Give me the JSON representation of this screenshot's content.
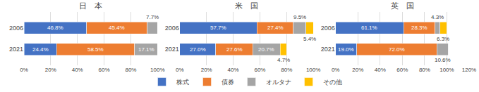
{
  "chart_data": [
    {
      "type": "bar",
      "title": "日　本",
      "orientation": "horizontal",
      "stacked": true,
      "data_labels": true,
      "grid": true,
      "legend": "bottom",
      "categories": [
        "2006",
        "2021"
      ],
      "series": [
        {
          "name": "株式",
          "color": "#4472C4",
          "values": [
            46.8,
            24.4
          ],
          "value_labels": [
            "46.8%",
            "24.4%"
          ]
        },
        {
          "name": "債券",
          "color": "#ED7D31",
          "values": [
            45.4,
            58.5
          ],
          "value_labels": [
            "45.4%",
            "58.5%"
          ]
        },
        {
          "name": "オルタナ",
          "color": "#A5A5A5",
          "values": [
            7.7,
            17.1
          ],
          "value_labels": [
            "7.7%",
            "17.1%"
          ]
        }
      ],
      "xlim": [
        0,
        100
      ],
      "xticks": [
        {
          "value": 0,
          "label": "0%"
        },
        {
          "value": 20,
          "label": "20%"
        },
        {
          "value": 40,
          "label": "40%"
        },
        {
          "value": 60,
          "label": "60%"
        },
        {
          "value": 80,
          "label": "80%"
        },
        {
          "value": 100,
          "label": "100%"
        }
      ]
    },
    {
      "type": "bar",
      "title": "米　国",
      "orientation": "horizontal",
      "stacked": true,
      "data_labels": true,
      "grid": true,
      "legend": "bottom",
      "categories": [
        "2006",
        "2021"
      ],
      "series": [
        {
          "name": "株式",
          "color": "#4472C4",
          "values": [
            57.7,
            27.0
          ],
          "value_labels": [
            "57.7%",
            "27.0%"
          ]
        },
        {
          "name": "債券",
          "color": "#ED7D31",
          "values": [
            27.4,
            27.6
          ],
          "value_labels": [
            "27.4%",
            "27.6%"
          ]
        },
        {
          "name": "オルタナ",
          "color": "#A5A5A5",
          "values": [
            9.5,
            20.7
          ],
          "value_labels": [
            "9.5%",
            "20.7%"
          ]
        },
        {
          "name": "その他",
          "color": "#FFC000",
          "values": [
            5.4,
            4.7
          ],
          "value_labels": [
            "5.4%",
            "4.7%"
          ]
        }
      ],
      "xlim": [
        0,
        100
      ],
      "xticks": [
        {
          "value": 0,
          "label": "0%"
        },
        {
          "value": 20,
          "label": "20%"
        },
        {
          "value": 40,
          "label": "40%"
        },
        {
          "value": 60,
          "label": "60%"
        },
        {
          "value": 80,
          "label": "80%"
        },
        {
          "value": 100,
          "label": "100%"
        }
      ]
    },
    {
      "type": "bar",
      "title": "英　国",
      "orientation": "horizontal",
      "stacked": true,
      "data_labels": true,
      "grid": true,
      "legend": "bottom",
      "categories": [
        "2006",
        "2021"
      ],
      "series": [
        {
          "name": "株式",
          "color": "#4472C4",
          "values": [
            61.1,
            19.0
          ],
          "value_labels": [
            "61.1%",
            "19.0%"
          ]
        },
        {
          "name": "債券",
          "color": "#ED7D31",
          "values": [
            28.3,
            72.0
          ],
          "value_labels": [
            "28.3%",
            "72.0%"
          ]
        },
        {
          "name": "オルタナ",
          "color": "#A5A5A5",
          "values": [
            4.3,
            10.6
          ],
          "value_labels": [
            "4.3%",
            "10.6%"
          ]
        },
        {
          "name": "その他",
          "color": "#FFC000",
          "values": [
            6.3,
            0.0
          ],
          "value_labels": [
            "6.3%",
            null
          ]
        }
      ],
      "xlim": [
        0,
        120
      ],
      "xticks": [
        {
          "value": 0,
          "label": "0%"
        },
        {
          "value": 20,
          "label": "20%"
        },
        {
          "value": 40,
          "label": "40%"
        },
        {
          "value": 60,
          "label": "60%"
        },
        {
          "value": 80,
          "label": "80%"
        },
        {
          "value": 100,
          "label": "100%"
        },
        {
          "value": 120,
          "label": "120%"
        }
      ]
    }
  ]
}
